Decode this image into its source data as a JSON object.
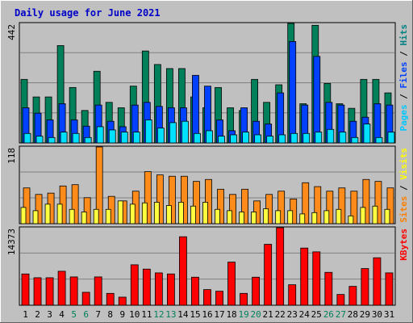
{
  "chart_data": {
    "type": "bar",
    "title": "Daily usage for June 2021",
    "days": [
      "1",
      "2",
      "3",
      "4",
      "5",
      "6",
      "7",
      "8",
      "9",
      "10",
      "11",
      "12",
      "13",
      "14",
      "15",
      "16",
      "17",
      "18",
      "19",
      "20",
      "21",
      "22",
      "23",
      "24",
      "25",
      "26",
      "27",
      "28",
      "29",
      "30",
      "31"
    ],
    "weekend_days": [
      "5",
      "6",
      "12",
      "13",
      "19",
      "20",
      "26",
      "27"
    ],
    "panels": [
      {
        "id": "hits-panel",
        "max_label": "442",
        "ymax": 442,
        "side_labels": [
          {
            "text": "Pages",
            "color": "#00c8ff"
          },
          {
            "text": "Files",
            "color": "#0040ff"
          },
          {
            "text": "Hits",
            "color": "#008080"
          }
        ],
        "series": [
          {
            "name": "Hits",
            "color": "#00805a",
            "values": [
              235,
              170,
              170,
              360,
              205,
              120,
              265,
              150,
              130,
              210,
              340,
              290,
              275,
              275,
              170,
              130,
              205,
              130,
              120,
              235,
              150,
              215,
              442,
              145,
              435,
              220,
              145,
              128,
              235,
              235,
              185
            ]
          },
          {
            "name": "Files",
            "color": "#0040ff",
            "values": [
              130,
              110,
              85,
              145,
              85,
              62,
              140,
              80,
              60,
              140,
              150,
              135,
              130,
              130,
              250,
              210,
              85,
              45,
              130,
              80,
              70,
              185,
              375,
              140,
              320,
              150,
              140,
              80,
              95,
              145,
              140
            ]
          },
          {
            "name": "Pages",
            "color": "#00e0ff",
            "values": [
              35,
              25,
              20,
              40,
              35,
              20,
              60,
              48,
              40,
              40,
              85,
              55,
              75,
              80,
              35,
              45,
              25,
              30,
              40,
              30,
              25,
              30,
              35,
              35,
              40,
              50,
              40,
              20,
              70,
              20,
              40
            ]
          }
        ]
      },
      {
        "id": "visits-panel",
        "max_label": "118",
        "ymax": 118,
        "side_labels": [
          {
            "text": "Sites",
            "color": "#ff8000"
          },
          {
            "text": "Visits",
            "color": "#ffff00"
          }
        ],
        "series": [
          {
            "name": "Visits",
            "color": "#ff8c1a",
            "values": [
              55,
              45,
              47,
              58,
              60,
              40,
              118,
              42,
              35,
              50,
              80,
              75,
              73,
              73,
              65,
              68,
              53,
              45,
              53,
              35,
              45,
              50,
              38,
              63,
              57,
              50,
              55,
              50,
              68,
              65,
              55
            ]
          },
          {
            "name": "Sites",
            "color": "#ffff40",
            "values": [
              25,
              20,
              30,
              30,
              22,
              18,
              22,
              22,
              35,
              30,
              32,
              33,
              28,
              33,
              27,
              33,
              22,
              20,
              18,
              18,
              23,
              20,
              20,
              15,
              17,
              20,
              22,
              12,
              25,
              27,
              22
            ]
          }
        ]
      },
      {
        "id": "kbytes-panel",
        "max_label": "14373",
        "ymax": 14373,
        "side_labels": [
          {
            "text": "KBytes",
            "color": "#ff0000"
          }
        ],
        "series": [
          {
            "name": "KBytes",
            "color": "#ff0000",
            "values": [
              5800,
              5100,
              5100,
              6300,
              5250,
              2400,
              5250,
              2200,
              1500,
              7500,
              6700,
              6000,
              5800,
              12700,
              5200,
              2900,
              2600,
              8000,
              2200,
              5200,
              11300,
              14373,
              3800,
              10600,
              9900,
              6100,
              2000,
              3500,
              6800,
              8800,
              6000
            ]
          }
        ]
      }
    ]
  }
}
